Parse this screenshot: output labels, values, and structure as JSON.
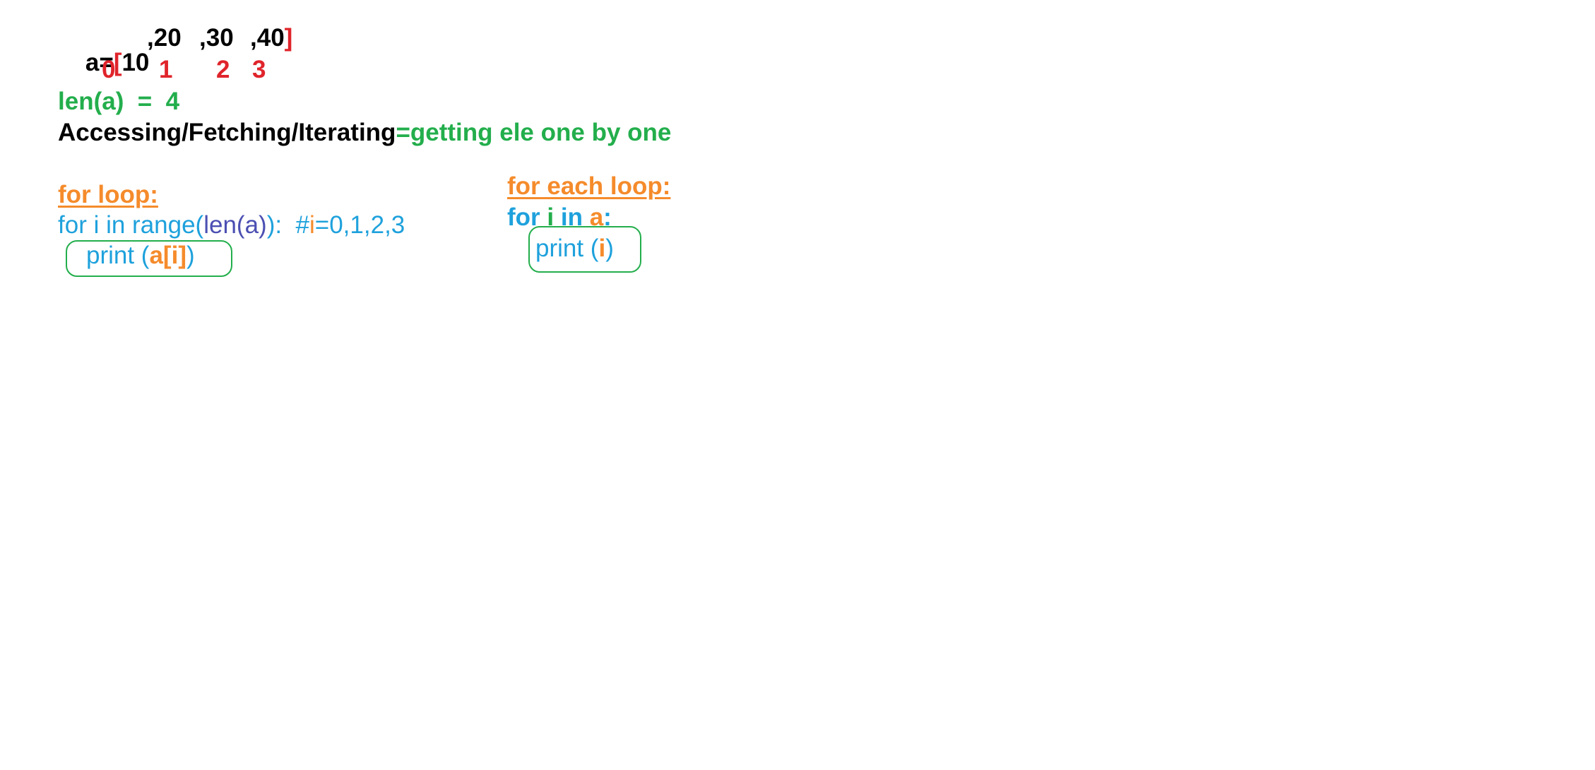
{
  "colors": {
    "black": "#000000",
    "red": "#e0242b",
    "green": "#23ae4c",
    "orange": "#f58b2b",
    "blue": "#1ea1dc",
    "purple": "#4b4fb2"
  },
  "list_line": {
    "a_eq": "a=",
    "open_bracket": "[",
    "v1": "10",
    "v2": ",20",
    "v3": ",30",
    "v4": ",40",
    "close_bracket": "]"
  },
  "indices": [
    "0",
    "1",
    "2",
    "3"
  ],
  "len_line": "len(a)  =  4",
  "accessing_line": {
    "black": "Accessing/Fetching/Iterating",
    "green": "=getting ele one by one"
  },
  "for_loop": {
    "heading": "for loop:",
    "code_a": "for i in range(",
    "code_b": "len(a)",
    "code_c": "):  #",
    "code_d": "i",
    "code_e": "=0,1,2,3",
    "print_a": "print (",
    "print_b": "a[i]",
    "print_c": ")"
  },
  "for_each_loop": {
    "heading": "for each loop:",
    "code_a": "for ",
    "code_b": "i",
    "code_c": " in ",
    "code_d": "a",
    "code_e": ":",
    "print_a": "print (",
    "print_b": "i",
    "print_c": ")"
  }
}
